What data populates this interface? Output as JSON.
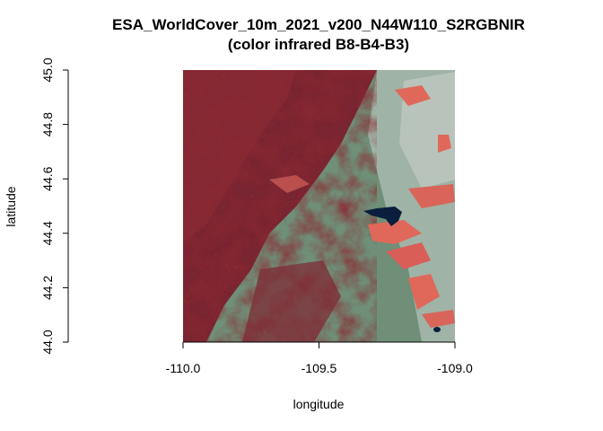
{
  "figure": {
    "title_line1": "ESA_WorldCover_10m_2021_v200_N44W110_S2RGBNIR",
    "title_line2": "(color infrared B8-B4-B3)",
    "xlabel": "longitude",
    "ylabel": "latitude"
  },
  "chart_data": {
    "type": "heatmap",
    "title": "ESA_WorldCover_10m_2021_v200_N44W110_S2RGBNIR (color infrared B8-B4-B3)",
    "xlabel": "longitude",
    "ylabel": "latitude",
    "xlim": [
      -110.0,
      -109.0
    ],
    "ylim": [
      44.0,
      45.0
    ],
    "x_ticks": [
      -110.0,
      -109.5,
      -109.0
    ],
    "x_tick_labels": [
      "-110.0",
      "-109.5",
      "-109.0"
    ],
    "y_ticks": [
      44.0,
      44.2,
      44.4,
      44.6,
      44.8,
      45.0
    ],
    "y_tick_labels": [
      "44.0",
      "44.2",
      "44.4",
      "44.6",
      "44.8",
      "45.0"
    ],
    "extent": {
      "lon_min": -110.0,
      "lon_max": -109.0,
      "lat_min": 44.0,
      "lat_max": 45.0
    },
    "image": "false-color infrared satellite raster (NIR-Red-Green composite)",
    "colors": {
      "vegetation_mountains": "#8a2a33",
      "grassland": "#6f8f78",
      "bare_light": "#b8c4bb",
      "cropland_fields": "#e0685a",
      "water": "#0a1f3d",
      "snow": "#dfeff2"
    }
  }
}
